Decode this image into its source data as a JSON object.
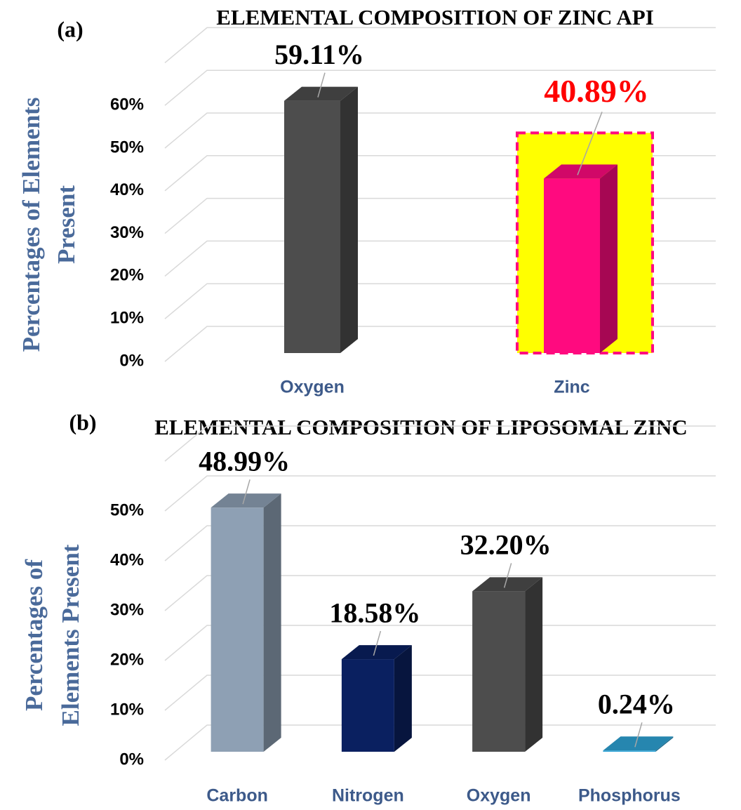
{
  "chart_data": [
    {
      "type": "bar3d",
      "panel": "(a)",
      "title": "ELEMENTAL COMPOSITION OF ZINC API",
      "ylabel": [
        "Percentages of Elements",
        "Present"
      ],
      "categories": [
        "Oxygen",
        "Zinc"
      ],
      "values": [
        59.11,
        40.89
      ],
      "value_labels": [
        "59.11%",
        "40.89%"
      ],
      "colors": [
        "#4d4d4d",
        "#ff0a7f"
      ],
      "value_label_colors": [
        "#000000",
        "#ff0000"
      ],
      "highlight_colors": [
        null,
        "#ffff00"
      ],
      "ylim": [
        0,
        70
      ],
      "yticks": [
        {
          "value": 0,
          "label": "0%"
        },
        {
          "value": 10,
          "label": "10%"
        },
        {
          "value": 20,
          "label": "20%"
        },
        {
          "value": 30,
          "label": "30%"
        },
        {
          "value": 40,
          "label": "40%"
        },
        {
          "value": 50,
          "label": "50%"
        },
        {
          "value": 60,
          "label": "60%"
        }
      ],
      "grid": true
    },
    {
      "type": "bar3d",
      "panel": "(b)",
      "title": "ELEMENTAL COMPOSITION OF LIPOSOMAL ZINC",
      "ylabel": [
        "Percentages of",
        "Elements Present"
      ],
      "categories": [
        "Carbon",
        "Nitrogen",
        "Oxygen",
        "Phosphorus"
      ],
      "values": [
        48.99,
        18.58,
        32.2,
        0.24
      ],
      "value_labels": [
        "48.99%",
        "18.58%",
        "32.20%",
        "0.24%"
      ],
      "colors": [
        "#8ea0b4",
        "#0a2060",
        "#4d4d4d",
        "#2ea3d6"
      ],
      "value_label_colors": [
        "#000000",
        "#000000",
        "#000000",
        "#000000"
      ],
      "highlight_colors": [
        null,
        null,
        null,
        null
      ],
      "ylim": [
        0,
        60
      ],
      "yticks": [
        {
          "value": 0,
          "label": "0%"
        },
        {
          "value": 10,
          "label": "10%"
        },
        {
          "value": 20,
          "label": "20%"
        },
        {
          "value": 30,
          "label": "30%"
        },
        {
          "value": 40,
          "label": "40%"
        },
        {
          "value": 50,
          "label": "50%"
        }
      ],
      "grid": true
    }
  ]
}
